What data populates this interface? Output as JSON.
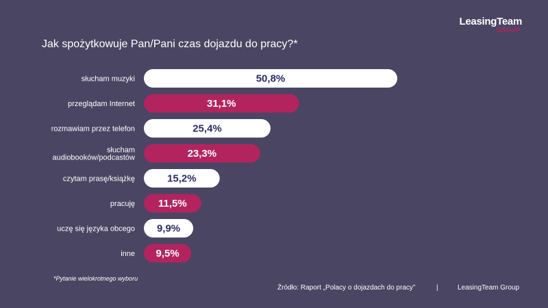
{
  "logo": {
    "main": "LeasingTeam",
    "sub": "GROUP"
  },
  "colors": {
    "background": "#4a4563",
    "accent": "#b3245f",
    "bar_light": "#ffffff",
    "label_dark": "#2d2a6b"
  },
  "chart_data": {
    "type": "bar",
    "orientation": "horizontal",
    "title": "Jak spożytkowuje Pan/Pani czas dojazdu do pracy?*",
    "categories": [
      [
        "słucham muzyki"
      ],
      [
        "przeglądam Internet"
      ],
      [
        "rozmawiam przez telefon"
      ],
      [
        "słucham",
        "audiobooków/podcastów"
      ],
      [
        "czytam prasę/książkę"
      ],
      [
        "pracuję"
      ],
      [
        "uczę się języka obcego"
      ],
      [
        "inne"
      ]
    ],
    "values": [
      50.8,
      31.1,
      25.4,
      23.3,
      15.2,
      11.5,
      9.9,
      9.5
    ],
    "value_labels": [
      "50,8%",
      "31,1%",
      "25,4%",
      "23,3%",
      "15,2%",
      "11,5%",
      "9,9%",
      "9,5%"
    ],
    "bar_colors": [
      "#ffffff",
      "#b3245f",
      "#ffffff",
      "#b3245f",
      "#ffffff",
      "#b3245f",
      "#ffffff",
      "#b3245f"
    ],
    "xlim": [
      0,
      50.8
    ]
  },
  "footnote": "*Pytanie wielokrotnego wyboru",
  "source": {
    "text": "Źródło: Raport „Polacy o dojazdach do pracy”",
    "separator": "|",
    "org": "LeasingTeam Group"
  }
}
